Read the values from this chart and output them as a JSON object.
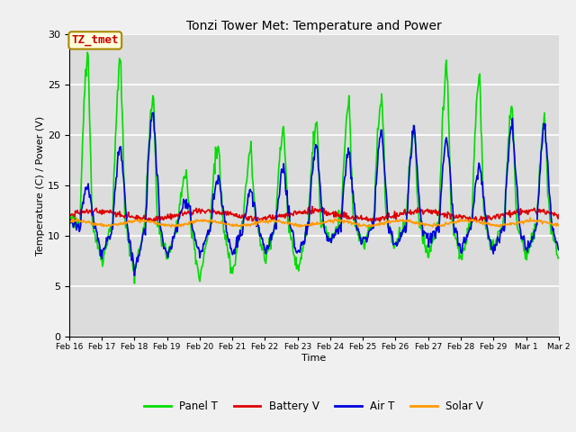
{
  "title": "Tonzi Tower Met: Temperature and Power",
  "xlabel": "Time",
  "ylabel": "Temperature (C) / Power (V)",
  "ylim": [
    0,
    30
  ],
  "yticks": [
    0,
    5,
    10,
    15,
    20,
    25,
    30
  ],
  "annotation_text": "TZ_tmet",
  "annotation_color": "#cc0000",
  "annotation_bg": "#ffffdd",
  "bg_color": "#d8d8d8",
  "plot_bg": "#dcdcdc",
  "series": {
    "panel_t": {
      "label": "Panel T",
      "color": "#00dd00",
      "lw": 1.2
    },
    "battery_v": {
      "label": "Battery V",
      "color": "#dd0000",
      "lw": 1.2
    },
    "air_t": {
      "label": "Air T",
      "color": "#0000dd",
      "lw": 1.2
    },
    "solar_v": {
      "label": "Solar V",
      "color": "#ff9900",
      "lw": 1.2
    }
  },
  "xtick_labels": [
    "Feb 16",
    "Feb 17",
    "Feb 18",
    "Feb 19",
    "Feb 20",
    "Feb 21",
    "Feb 22",
    "Feb 23",
    "Feb 24",
    "Feb 25",
    "Feb 26",
    "Feb 27",
    "Feb 28",
    "Feb 29",
    "Mar 1",
    "Mar 2"
  ],
  "n_days": 15,
  "fig_width": 6.4,
  "fig_height": 4.8,
  "dpi": 100
}
